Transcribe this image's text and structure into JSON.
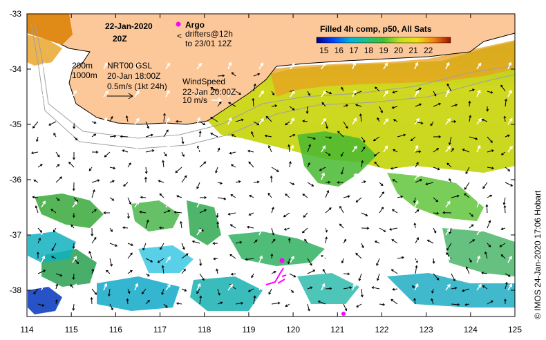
{
  "map": {
    "date_title": "22-Jan-2020",
    "time_title": "20Z",
    "x_ticks": [
      "114",
      "115",
      "116",
      "117",
      "118",
      "119",
      "120",
      "121",
      "122",
      "123",
      "124",
      "125"
    ],
    "y_ticks": [
      "-33",
      "-34",
      "-35",
      "-36",
      "-37",
      "-38"
    ],
    "credit": "© IMOS 24-Jan-2020 17:06 Hobart"
  },
  "legend": {
    "argo_label": "Argo",
    "drifters_label": "drifters@12h",
    "drifters_to": "to 23/01 12Z",
    "depth_200": "200m",
    "depth_1000": "1000m",
    "nrt_title": "NRT00 GSL",
    "nrt_time": "20-Jan 18:00Z",
    "current_scale": "0.5m/s (1kt 24h)",
    "wind_title": "WindSpeed",
    "wind_time": "22-Jan 20:00Z",
    "wind_scale": "10 m/s"
  },
  "colorbar": {
    "title": "Filled 4h comp, p50, All Sats",
    "labels": [
      "15",
      "16",
      "17",
      "18",
      "19",
      "20",
      "21",
      "22"
    ],
    "min": 14.5,
    "max": 23.5
  },
  "colors": {
    "land": "#fcc89a",
    "coast": "#000000",
    "argo": "#ff00ff",
    "cool": "#2060c0",
    "mid": "#30b040",
    "warm": "#e0e030"
  }
}
